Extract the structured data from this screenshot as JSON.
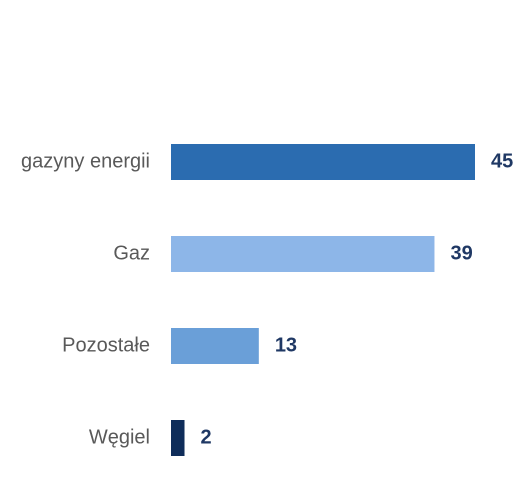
{
  "chart_data": {
    "type": "bar",
    "orientation": "horizontal",
    "categories": [
      "gazyny energii",
      "Gaz",
      "Pozostałe",
      "Węgiel"
    ],
    "values": [
      45,
      39,
      13,
      2
    ],
    "colors": [
      "#2b6cb0",
      "#8db6e8",
      "#6a9fd8",
      "#0f2d5a"
    ]
  }
}
